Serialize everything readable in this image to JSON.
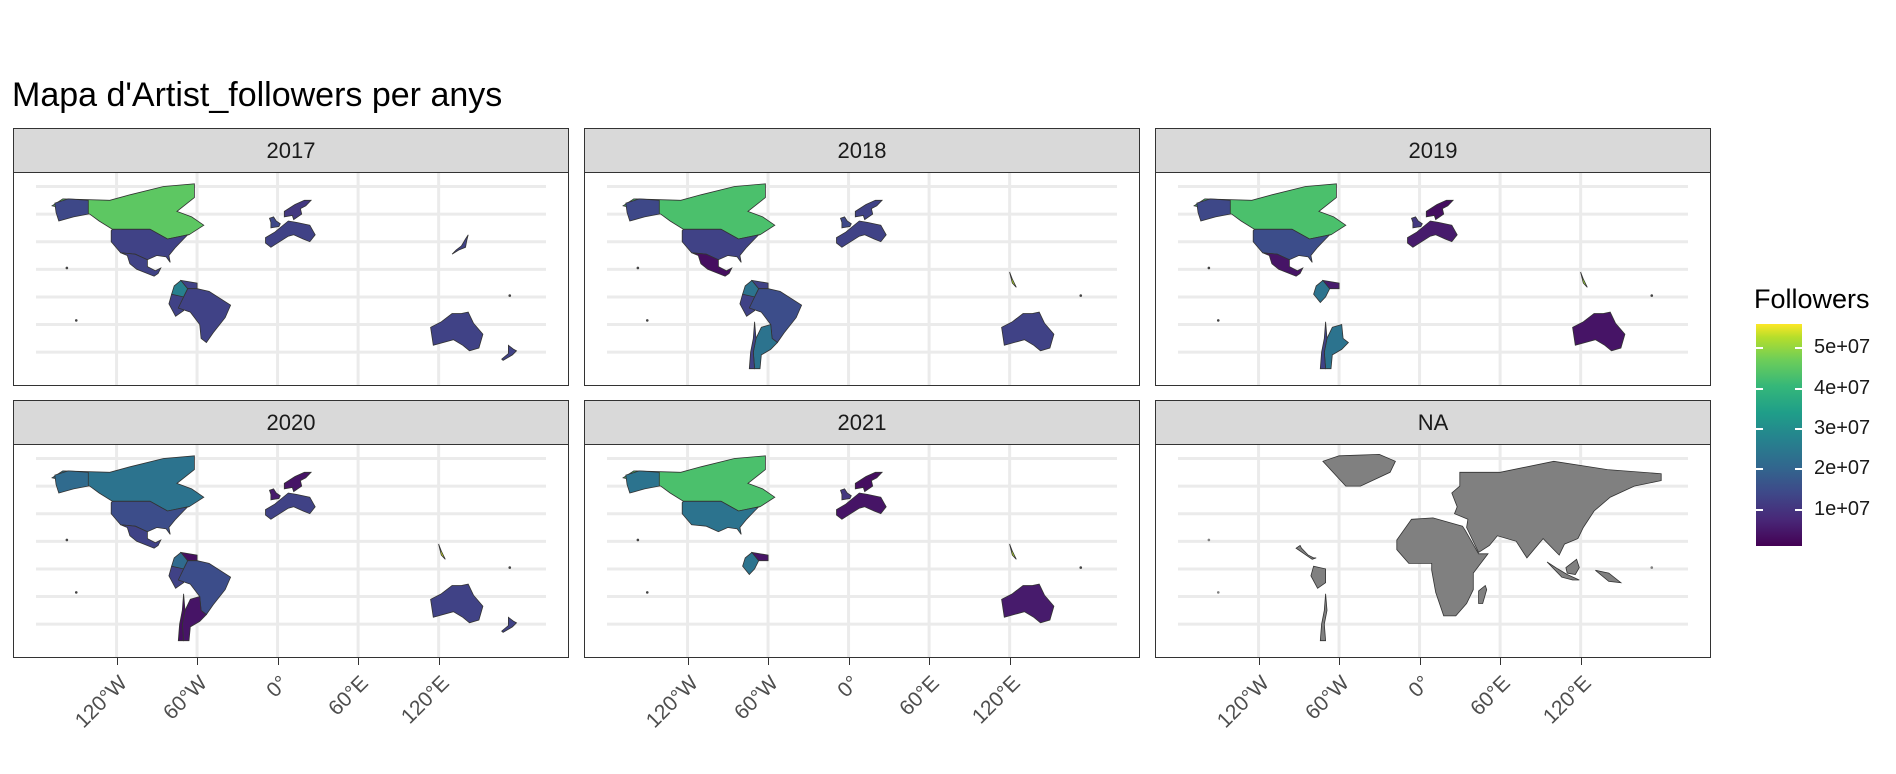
{
  "chart_data": {
    "type": "choropleth-map",
    "title": "Mapa d'Artist_followers per anys",
    "facets": [
      "2017",
      "2018",
      "2019",
      "2020",
      "2021",
      "NA"
    ],
    "x_axis": {
      "ticks": [
        -120,
        -60,
        0,
        60,
        120
      ],
      "tick_labels": [
        "120°W",
        "60°W",
        "0°",
        "60°E",
        "120°E"
      ],
      "range": [
        -180,
        200
      ]
    },
    "y_axis": {
      "range": [
        -58,
        84
      ],
      "gridlines": [
        -40,
        -20,
        0,
        20,
        40,
        60,
        80
      ]
    },
    "legend": {
      "title": "Followers",
      "placement": "right",
      "scale": "viridis",
      "range": [
        1000000,
        56000000
      ],
      "breaks": [
        10000000,
        20000000,
        30000000,
        40000000,
        50000000
      ],
      "break_labels": [
        "1e+07",
        "2e+07",
        "3e+07",
        "4e+07",
        "5e+07"
      ]
    },
    "grid": true
  }
}
